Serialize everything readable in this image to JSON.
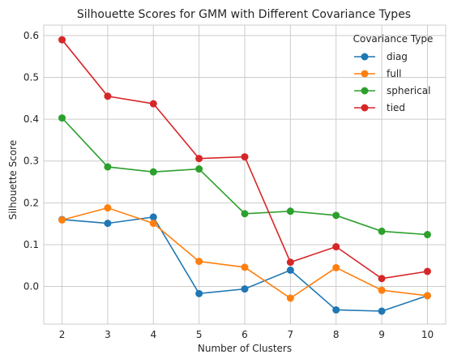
{
  "chart_data": {
    "type": "line",
    "title": "Silhouette Scores for GMM with Different Covariance Types",
    "xlabel": "Number of Clusters",
    "ylabel": "Silhouette Score",
    "x": [
      2,
      3,
      4,
      5,
      6,
      7,
      8,
      9,
      10
    ],
    "xlim": [
      1.6,
      10.4
    ],
    "ylim": [
      -0.09,
      0.625
    ],
    "xticks": [
      "2",
      "3",
      "4",
      "5",
      "6",
      "7",
      "8",
      "9",
      "10"
    ],
    "yticks": [
      0.0,
      0.1,
      0.2,
      0.3,
      0.4,
      0.5,
      0.6
    ],
    "ytick_labels": [
      "0.0",
      "0.1",
      "0.2",
      "0.3",
      "0.4",
      "0.5",
      "0.6"
    ],
    "grid": true,
    "legend": {
      "title": "Covariance Type",
      "placement": "top-right"
    },
    "series": [
      {
        "name": "diag",
        "color": "#1f77b4",
        "values": [
          0.16,
          0.151,
          0.166,
          -0.017,
          -0.006,
          0.039,
          -0.056,
          -0.059,
          -0.022
        ]
      },
      {
        "name": "full",
        "color": "#ff7f0e",
        "values": [
          0.159,
          0.188,
          0.151,
          0.06,
          0.046,
          -0.028,
          0.045,
          -0.009,
          -0.022
        ]
      },
      {
        "name": "spherical",
        "color": "#2ca02c",
        "values": [
          0.403,
          0.286,
          0.274,
          0.281,
          0.174,
          0.18,
          0.17,
          0.132,
          0.124
        ]
      },
      {
        "name": "tied",
        "color": "#d62728",
        "values": [
          0.59,
          0.455,
          0.437,
          0.306,
          0.31,
          0.058,
          0.095,
          0.019,
          0.036
        ]
      }
    ]
  }
}
